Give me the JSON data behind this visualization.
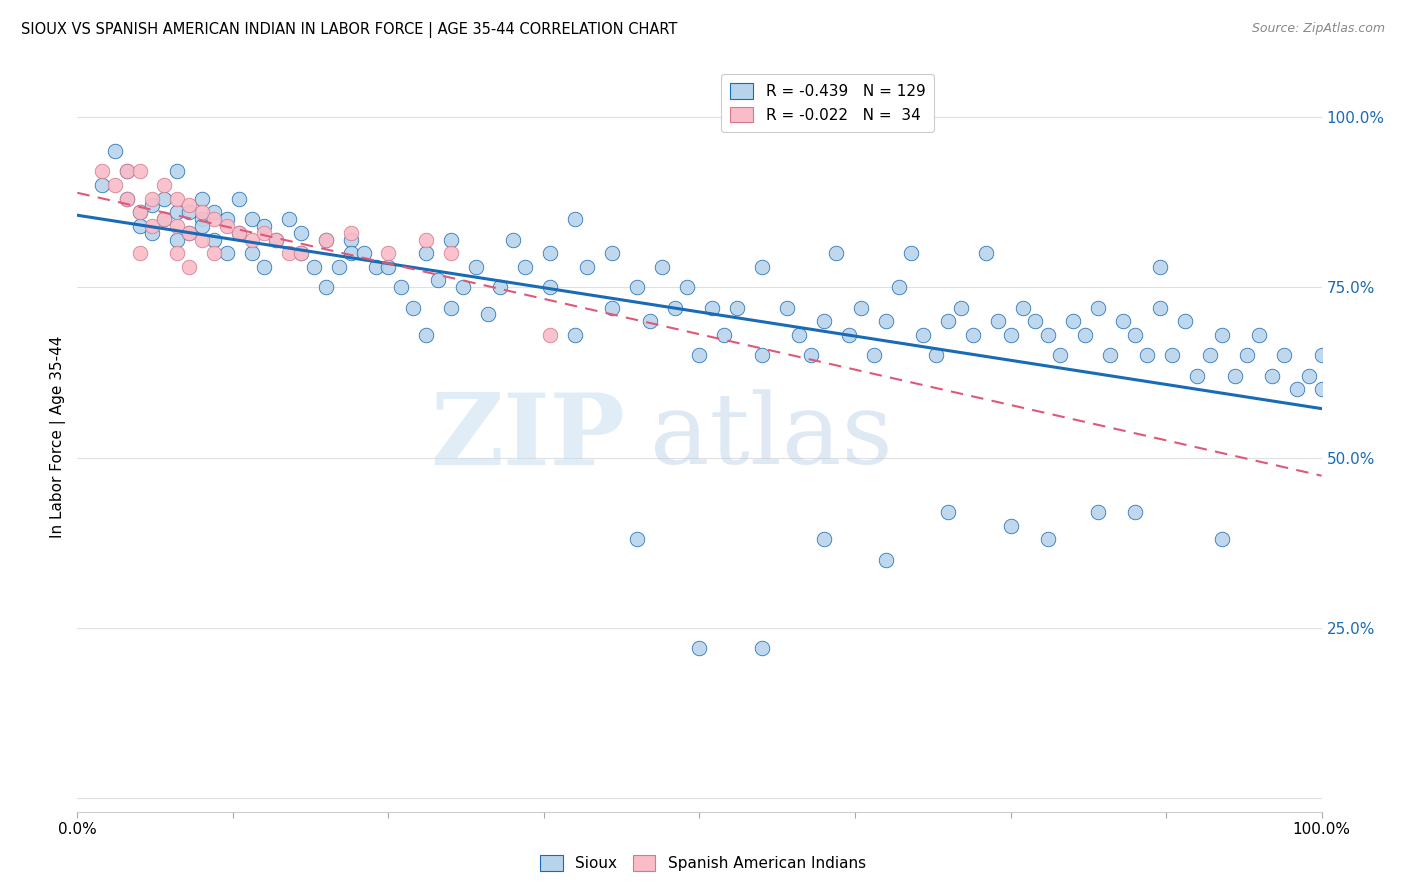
{
  "title": "SIOUX VS SPANISH AMERICAN INDIAN IN LABOR FORCE | AGE 35-44 CORRELATION CHART",
  "source": "Source: ZipAtlas.com",
  "ylabel": "In Labor Force | Age 35-44",
  "xlim": [
    0.0,
    1.0
  ],
  "ylim": [
    -0.02,
    1.08
  ],
  "legend_blue_R": "R = -0.439",
  "legend_blue_N": "N = 129",
  "legend_pink_R": "R = -0.022",
  "legend_pink_N": "N =  34",
  "blue_color": "#b8d4ed",
  "pink_color": "#f9bcc8",
  "trendline_blue": "#1a6bb5",
  "trendline_pink": "#e05878",
  "background_color": "#ffffff",
  "grid_color": "#e0e0e0",
  "watermark_zip": "ZIP",
  "watermark_atlas": "atlas",
  "sioux_x": [
    0.02,
    0.03,
    0.04,
    0.04,
    0.05,
    0.05,
    0.06,
    0.06,
    0.07,
    0.07,
    0.08,
    0.08,
    0.08,
    0.09,
    0.09,
    0.1,
    0.1,
    0.1,
    0.11,
    0.11,
    0.12,
    0.12,
    0.13,
    0.13,
    0.14,
    0.14,
    0.15,
    0.15,
    0.16,
    0.17,
    0.18,
    0.18,
    0.19,
    0.2,
    0.2,
    0.21,
    0.22,
    0.22,
    0.23,
    0.24,
    0.25,
    0.26,
    0.27,
    0.28,
    0.28,
    0.29,
    0.3,
    0.3,
    0.31,
    0.32,
    0.33,
    0.34,
    0.35,
    0.36,
    0.38,
    0.38,
    0.4,
    0.4,
    0.41,
    0.43,
    0.43,
    0.45,
    0.46,
    0.47,
    0.48,
    0.49,
    0.5,
    0.51,
    0.52,
    0.53,
    0.55,
    0.55,
    0.57,
    0.58,
    0.59,
    0.6,
    0.61,
    0.62,
    0.63,
    0.64,
    0.65,
    0.66,
    0.67,
    0.68,
    0.69,
    0.7,
    0.71,
    0.72,
    0.73,
    0.74,
    0.75,
    0.76,
    0.77,
    0.78,
    0.79,
    0.8,
    0.81,
    0.82,
    0.83,
    0.84,
    0.85,
    0.86,
    0.87,
    0.87,
    0.88,
    0.89,
    0.9,
    0.91,
    0.92,
    0.93,
    0.94,
    0.95,
    0.96,
    0.97,
    0.98,
    0.99,
    1.0,
    1.0,
    0.92,
    0.85,
    0.82,
    0.78,
    0.75,
    0.7,
    0.65,
    0.6,
    0.55,
    0.5,
    0.45
  ],
  "sioux_y": [
    0.9,
    0.95,
    0.92,
    0.88,
    0.86,
    0.84,
    0.87,
    0.83,
    0.88,
    0.85,
    0.92,
    0.86,
    0.82,
    0.86,
    0.83,
    0.88,
    0.85,
    0.84,
    0.86,
    0.82,
    0.85,
    0.8,
    0.83,
    0.88,
    0.85,
    0.8,
    0.84,
    0.78,
    0.82,
    0.85,
    0.8,
    0.83,
    0.78,
    0.82,
    0.75,
    0.78,
    0.82,
    0.8,
    0.8,
    0.78,
    0.78,
    0.75,
    0.72,
    0.68,
    0.8,
    0.76,
    0.72,
    0.82,
    0.75,
    0.78,
    0.71,
    0.75,
    0.82,
    0.78,
    0.75,
    0.8,
    0.68,
    0.85,
    0.78,
    0.72,
    0.8,
    0.75,
    0.7,
    0.78,
    0.72,
    0.75,
    0.65,
    0.72,
    0.68,
    0.72,
    0.78,
    0.65,
    0.72,
    0.68,
    0.65,
    0.7,
    0.8,
    0.68,
    0.72,
    0.65,
    0.7,
    0.75,
    0.8,
    0.68,
    0.65,
    0.7,
    0.72,
    0.68,
    0.8,
    0.7,
    0.68,
    0.72,
    0.7,
    0.68,
    0.65,
    0.7,
    0.68,
    0.72,
    0.65,
    0.7,
    0.68,
    0.65,
    0.72,
    0.78,
    0.65,
    0.7,
    0.62,
    0.65,
    0.68,
    0.62,
    0.65,
    0.68,
    0.62,
    0.65,
    0.6,
    0.62,
    0.6,
    0.65,
    0.38,
    0.42,
    0.42,
    0.38,
    0.4,
    0.42,
    0.35,
    0.38,
    0.22,
    0.22,
    0.38
  ],
  "spanish_x": [
    0.02,
    0.03,
    0.04,
    0.04,
    0.05,
    0.05,
    0.05,
    0.06,
    0.06,
    0.07,
    0.07,
    0.08,
    0.08,
    0.08,
    0.09,
    0.09,
    0.09,
    0.1,
    0.1,
    0.11,
    0.11,
    0.12,
    0.13,
    0.14,
    0.15,
    0.16,
    0.17,
    0.18,
    0.2,
    0.22,
    0.25,
    0.28,
    0.3,
    0.38
  ],
  "spanish_y": [
    0.92,
    0.9,
    0.92,
    0.88,
    0.92,
    0.86,
    0.8,
    0.88,
    0.84,
    0.9,
    0.85,
    0.88,
    0.84,
    0.8,
    0.87,
    0.83,
    0.78,
    0.86,
    0.82,
    0.85,
    0.8,
    0.84,
    0.83,
    0.82,
    0.83,
    0.82,
    0.8,
    0.8,
    0.82,
    0.83,
    0.8,
    0.82,
    0.8,
    0.68
  ]
}
